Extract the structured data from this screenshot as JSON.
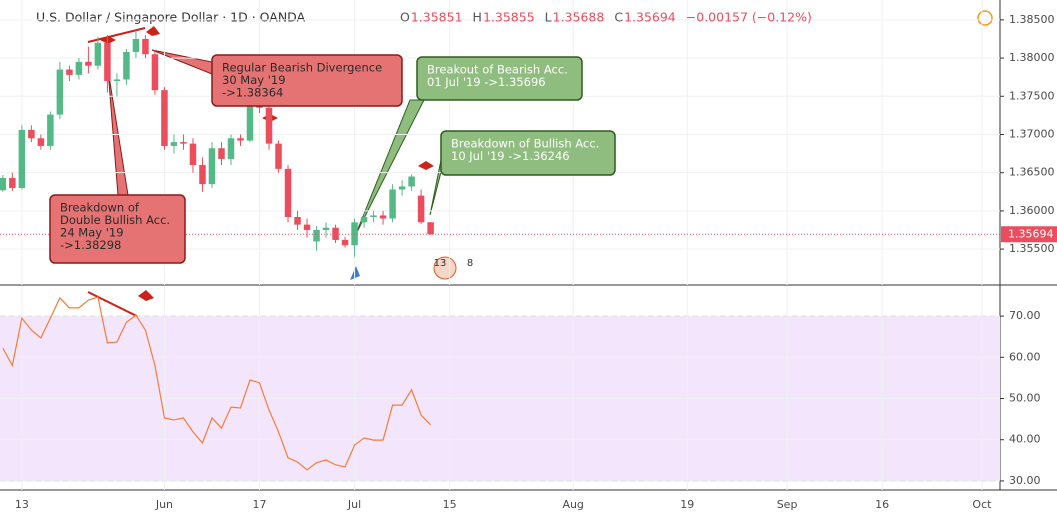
{
  "chart_data": [
    {
      "type": "candlestick",
      "title": "U.S. Dollar / Singapore Dollar · 1D · OANDA",
      "ohlc": [
        {
          "label": "O",
          "value": 1.35851
        },
        {
          "label": "H",
          "value": 1.35855
        },
        {
          "label": "L",
          "value": 1.35688
        },
        {
          "label": "C",
          "value": 1.35694
        }
      ],
      "change": "−0.00157 (−0.12%)",
      "open": [
        1.3627,
        1.3643,
        1.363,
        1.3706,
        1.3695,
        1.3685,
        1.3726,
        1.3785,
        1.3778,
        1.3795,
        1.379,
        1.382,
        1.377,
        1.3772,
        1.3808,
        1.3825,
        1.3805,
        1.3758,
        1.3685,
        1.369,
        1.3688,
        1.366,
        1.3635,
        1.3682,
        1.3668,
        1.3695,
        1.3692,
        1.374,
        1.3735,
        1.3688,
        1.3655,
        1.3592,
        1.3582,
        1.356,
        1.3575,
        1.3578,
        1.3562,
        1.3555,
        1.3585,
        1.3592,
        1.3594,
        1.359,
        1.3628,
        1.3632,
        1.362,
        1.35851
      ],
      "high": [
        1.3647,
        1.365,
        1.3712,
        1.3712,
        1.37,
        1.373,
        1.3795,
        1.379,
        1.38,
        1.3815,
        1.3828,
        1.383,
        1.378,
        1.3812,
        1.3836,
        1.383,
        1.381,
        1.3762,
        1.37,
        1.37,
        1.3695,
        1.367,
        1.369,
        1.369,
        1.37,
        1.37,
        1.3745,
        1.3748,
        1.374,
        1.3692,
        1.366,
        1.36,
        1.359,
        1.358,
        1.3585,
        1.3582,
        1.3566,
        1.359,
        1.3598,
        1.36,
        1.36,
        1.3635,
        1.364,
        1.3648,
        1.3628,
        1.35855
      ],
      "low": [
        1.3625,
        1.3626,
        1.3628,
        1.369,
        1.368,
        1.368,
        1.372,
        1.377,
        1.3772,
        1.378,
        1.3785,
        1.3755,
        1.375,
        1.3765,
        1.38,
        1.38,
        1.3752,
        1.368,
        1.3675,
        1.368,
        1.365,
        1.3625,
        1.363,
        1.366,
        1.366,
        1.3685,
        1.369,
        1.3728,
        1.368,
        1.365,
        1.3585,
        1.3575,
        1.3565,
        1.3548,
        1.3565,
        1.3558,
        1.3552,
        1.354,
        1.3578,
        1.3585,
        1.3582,
        1.3585,
        1.362,
        1.3626,
        1.3583,
        1.35688
      ],
      "close": [
        1.3643,
        1.363,
        1.3706,
        1.3695,
        1.3685,
        1.3726,
        1.3785,
        1.3778,
        1.3795,
        1.379,
        1.382,
        1.377,
        1.3772,
        1.3808,
        1.3825,
        1.3805,
        1.3758,
        1.3685,
        1.369,
        1.3688,
        1.366,
        1.3635,
        1.3682,
        1.3668,
        1.3695,
        1.3692,
        1.374,
        1.3735,
        1.3688,
        1.3655,
        1.3592,
        1.3582,
        1.3575,
        1.3575,
        1.3578,
        1.3562,
        1.3555,
        1.3585,
        1.3592,
        1.3594,
        1.359,
        1.3628,
        1.3632,
        1.3645,
        1.35851,
        1.35694
      ],
      "up_color": "#53b987",
      "down_color": "#eb4d5c",
      "xlim": [
        -0.3,
        104.9
      ],
      "xticks": [
        {
          "value": 2,
          "label": "13"
        },
        {
          "value": 17,
          "label": "Jun"
        },
        {
          "value": 27,
          "label": "17"
        },
        {
          "value": 37,
          "label": "Jul"
        },
        {
          "value": 47,
          "label": "15"
        },
        {
          "value": 60,
          "label": "Aug"
        },
        {
          "value": 72,
          "label": "19"
        },
        {
          "value": 82.5,
          "label": "Sep"
        },
        {
          "value": 92.5,
          "label": "16"
        },
        {
          "value": 103,
          "label": "Oct"
        }
      ],
      "ylim": [
        1.3503,
        1.3876
      ],
      "yticks": [
        {
          "value": 1.355,
          "label": "1.35500"
        },
        {
          "value": 1.36,
          "label": "1.36000"
        },
        {
          "value": 1.365,
          "label": "1.36500"
        },
        {
          "value": 1.37,
          "label": "1.37000"
        },
        {
          "value": 1.375,
          "label": "1.37500"
        },
        {
          "value": 1.38,
          "label": "1.38000"
        },
        {
          "value": 1.385,
          "label": "1.38500"
        }
      ],
      "last_price": {
        "value": 1.35694,
        "label": "1.35694"
      },
      "events": [
        13,
        8
      ],
      "grid": true,
      "annotations": [
        {
          "lines": [
            "Breakdown of",
            "Double Bullish Acc.",
            "24 May '19",
            "->1.38298"
          ],
          "color": "red"
        },
        {
          "lines": [
            "Regular Bearish Divergence",
            "30 May '19",
            "->1.38364"
          ],
          "color": "red"
        },
        {
          "lines": [
            "Breakout of Bearish Acc.",
            "01 Jul '19 ->1.35696"
          ],
          "color": "green"
        },
        {
          "lines": [
            "Breakdown of Bullish Acc.",
            "10 Jul '19 ->1.36246"
          ],
          "color": "green"
        }
      ]
    },
    {
      "type": "line",
      "values": [
        62.2,
        58,
        69.5,
        66.6,
        64.7,
        69.5,
        74.4,
        72,
        72,
        73.9,
        74.6,
        63.5,
        63.7,
        68.5,
        70.2,
        66.6,
        58,
        45.3,
        44.8,
        45.3,
        41.9,
        39.2,
        45.3,
        42.8,
        47.9,
        47.7,
        54.5,
        53.8,
        47.2,
        41.9,
        35.6,
        34.6,
        32.7,
        34.4,
        35.1,
        33.9,
        33.4,
        38.7,
        40.4,
        39.9,
        39.9,
        48.4,
        48.4,
        52.1,
        46,
        43.6
      ],
      "color": "#f57c39",
      "ylim": [
        27.8,
        77.3
      ],
      "yticks": [
        {
          "value": 30,
          "label": "30.00"
        },
        {
          "value": 40,
          "label": "40.00"
        },
        {
          "value": 50,
          "label": "50.00"
        },
        {
          "value": 60,
          "label": "60.00"
        },
        {
          "value": 70,
          "label": "70.00"
        }
      ],
      "band": [
        30,
        70
      ],
      "grid": true
    }
  ]
}
